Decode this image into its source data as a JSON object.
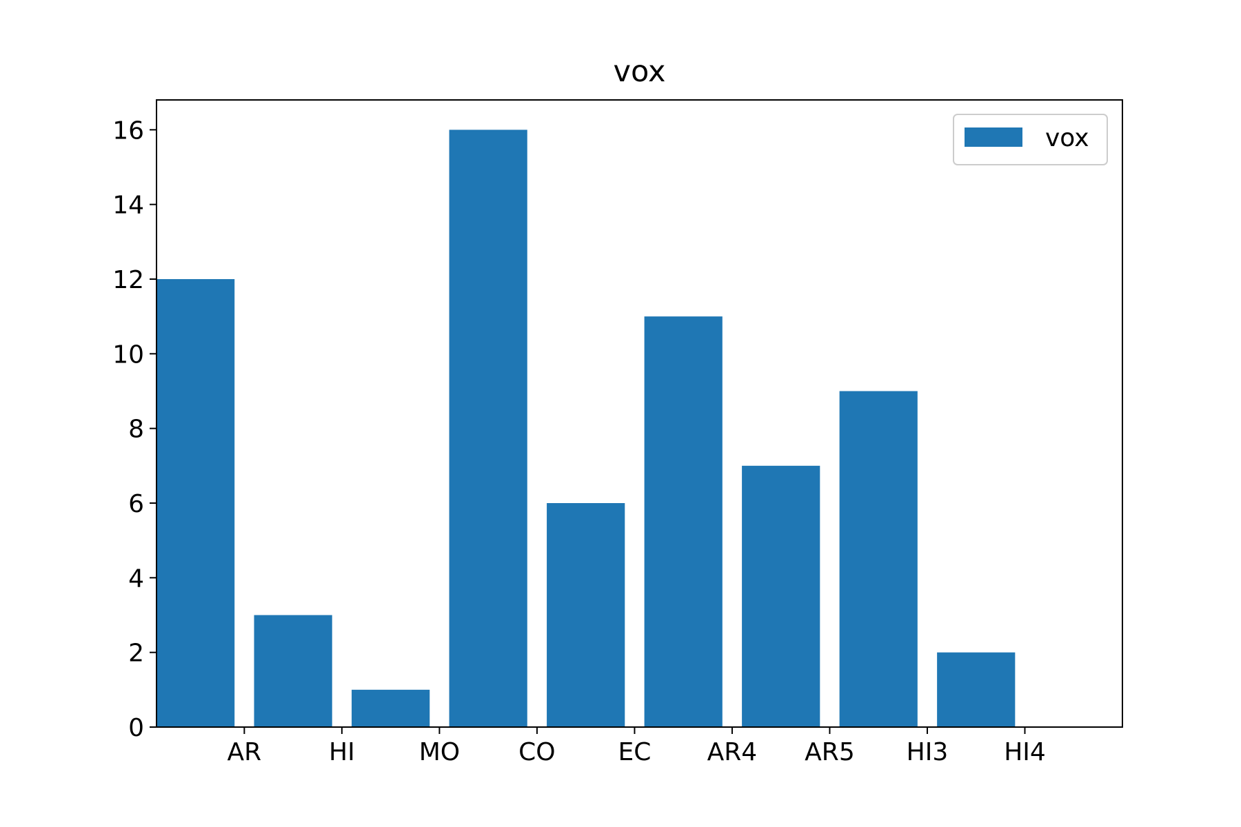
{
  "chart_data": {
    "type": "bar",
    "title": "vox",
    "xlabel": "",
    "ylabel": "",
    "categories": [
      "AR",
      "HI",
      "MO",
      "CO",
      "EC",
      "AR4",
      "AR5",
      "HI3",
      "HI4"
    ],
    "series": [
      {
        "name": "vox",
        "values": [
          12,
          3,
          1,
          16,
          6,
          11,
          7,
          9,
          2
        ],
        "color": "#1f77b4"
      }
    ],
    "ylim": [
      0,
      16.8
    ],
    "yticks": [
      0,
      2,
      4,
      6,
      8,
      10,
      12,
      14,
      16
    ],
    "legend_position": "top-right",
    "grid": false
  }
}
